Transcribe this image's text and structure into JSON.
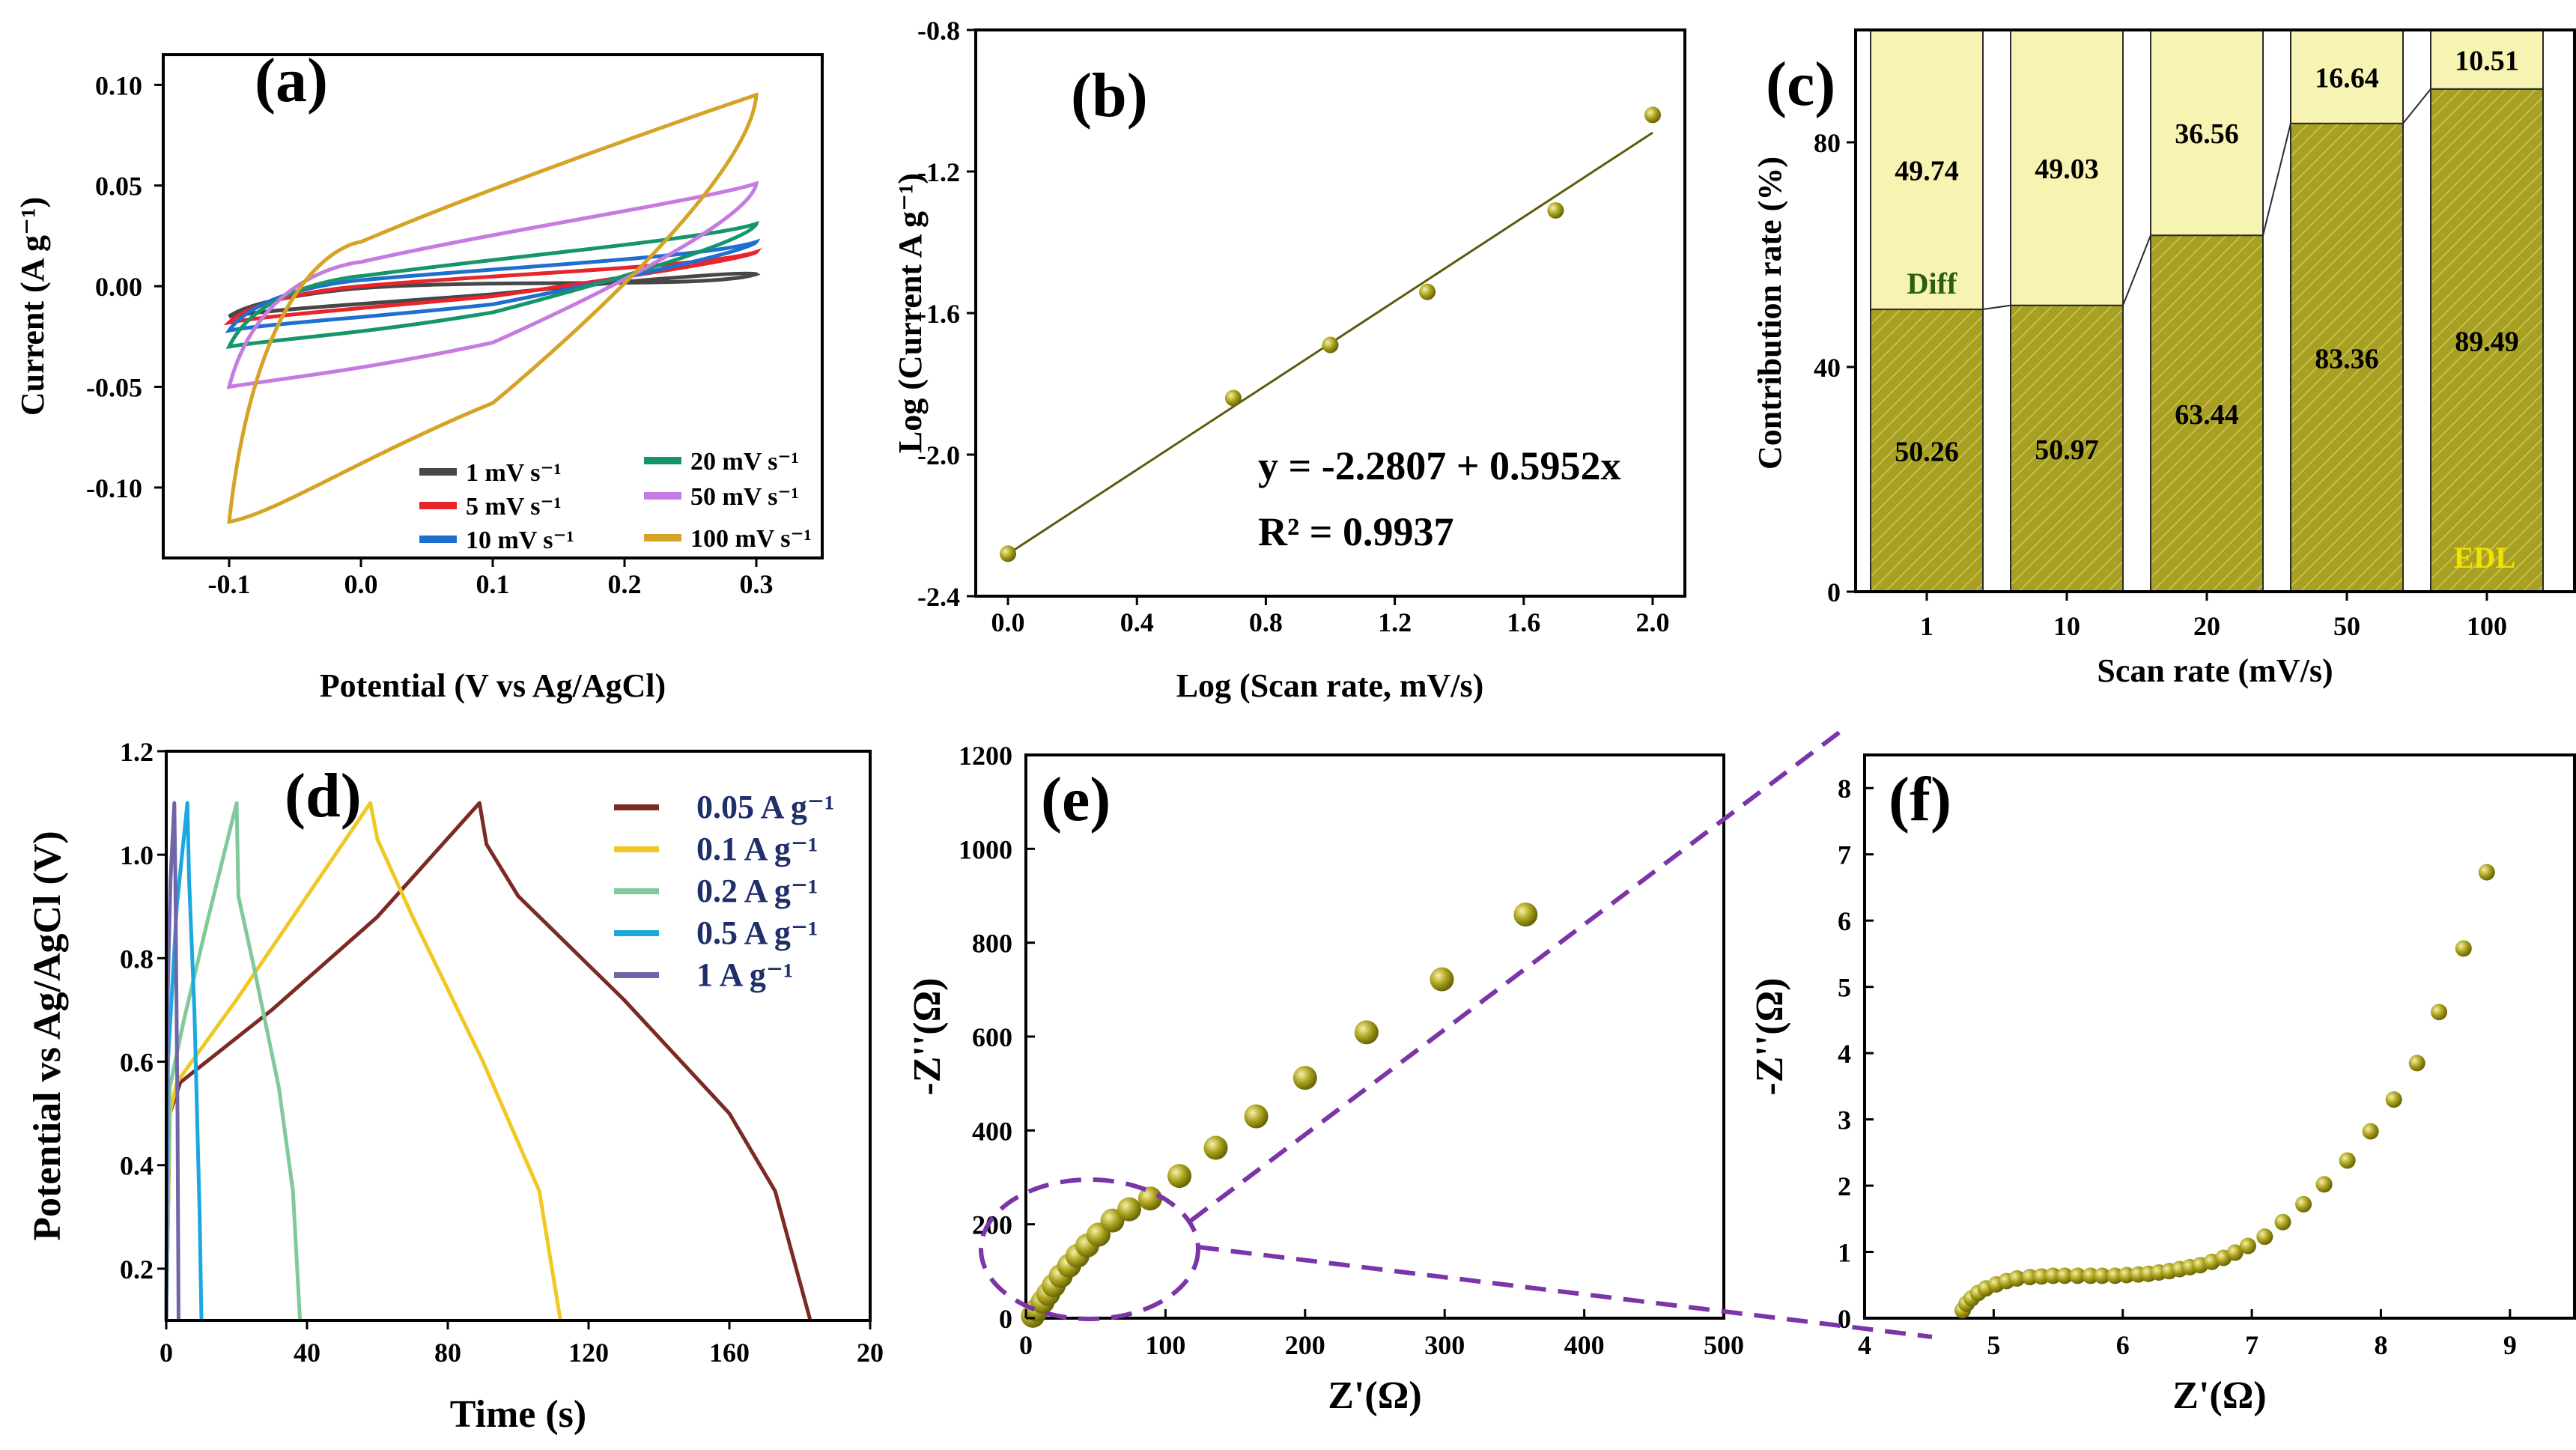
{
  "panels": {
    "a": {
      "label": "(a)"
    },
    "b": {
      "label": "(b)"
    },
    "c": {
      "label": "(c)"
    },
    "d": {
      "label": "(d)"
    },
    "e": {
      "label": "(e)"
    },
    "f": {
      "label": "(f)"
    }
  },
  "colors": {
    "olive": "#a8a022",
    "olive_dark": "#5a5410",
    "cream": "#f7f3b2",
    "purple": "#7b35a8",
    "dataset_point": "#a7a11c",
    "edl_label": "#f2e300",
    "diff_label": "#2a5e10"
  },
  "chart_data": [
    {
      "id": "a",
      "type": "line",
      "title": "",
      "xlabel": "Potential (V vs Ag/AgCl)",
      "ylabel": "Current (A g⁻¹)",
      "xlim": [
        -0.15,
        0.35
      ],
      "ylim": [
        -0.135,
        0.115
      ],
      "xticks": [
        "-0.1",
        "0.0",
        "0.1",
        "0.2",
        "0.3"
      ],
      "yticks": [
        "-0.10",
        "-0.05",
        "0.00",
        "0.05",
        "0.10"
      ],
      "legend_position": "bottom-right",
      "series": [
        {
          "name": "1 mV s⁻¹",
          "color": "#474747",
          "top": [
            -0.015,
            -0.001,
            0.004,
            0.006
          ],
          "bottom": [
            -0.015,
            -0.009,
            -0.004,
            0.005
          ]
        },
        {
          "name": "5 mV s⁻¹",
          "color": "#e8252b",
          "top": [
            -0.018,
            0.0,
            0.006,
            0.017
          ],
          "bottom": [
            -0.018,
            -0.011,
            -0.005,
            0.009
          ]
        },
        {
          "name": "10 mV s⁻¹",
          "color": "#1f6fd0",
          "top": [
            -0.022,
            0.003,
            0.009,
            0.022
          ],
          "bottom": [
            -0.022,
            -0.016,
            -0.009,
            0.012
          ]
        },
        {
          "name": "20 mV s⁻¹",
          "color": "#16956a",
          "top": [
            -0.03,
            0.005,
            0.014,
            0.031
          ],
          "bottom": [
            -0.03,
            -0.024,
            -0.013,
            0.016
          ]
        },
        {
          "name": "50 mV s⁻¹",
          "color": "#c57be0",
          "top": [
            -0.05,
            0.012,
            0.027,
            0.051
          ],
          "bottom": [
            -0.05,
            -0.042,
            -0.028,
            0.024
          ]
        },
        {
          "name": "100 mV s⁻¹",
          "color": "#d5a325",
          "top": [
            -0.117,
            0.022,
            0.05,
            0.095
          ],
          "bottom": [
            -0.117,
            -0.085,
            -0.058,
            0.042
          ]
        }
      ]
    },
    {
      "id": "b",
      "type": "scatter",
      "title": "",
      "xlabel": "Log (Scan rate, mV/s)",
      "ylabel": "Log (Current A g⁻¹)",
      "xlim": [
        -0.1,
        2.1
      ],
      "ylim": [
        -2.4,
        -0.8
      ],
      "xticks": [
        "0.0",
        "0.4",
        "0.8",
        "1.2",
        "1.6",
        "2.0"
      ],
      "yticks": [
        "-2.4",
        "-2.0",
        "-1.6",
        "-1.2",
        "-0.8"
      ],
      "x": [
        0.0,
        0.699,
        1.0,
        1.301,
        1.699,
        2.0
      ],
      "y": [
        -2.28,
        -1.84,
        -1.69,
        -1.54,
        -1.31,
        -1.04
      ],
      "fit": {
        "intercept": -2.2807,
        "slope": 0.5952
      },
      "equation": "y = -2.2807 + 0.5952x",
      "r2": "R² = 0.9937"
    },
    {
      "id": "c",
      "type": "bar",
      "stacked": true,
      "title": "",
      "xlabel": "Scan rate (mV/s)",
      "ylabel": "Contribution rate (%)",
      "ylim": [
        0,
        100
      ],
      "yticks": [
        "0",
        "40",
        "80"
      ],
      "categories": [
        "1",
        "10",
        "20",
        "50",
        "100"
      ],
      "series": [
        {
          "name": "EDL",
          "values": [
            50.26,
            50.97,
            63.44,
            83.36,
            89.49
          ],
          "labels": [
            "50.26",
            "50.97",
            "63.44",
            "83.36",
            "89.49"
          ]
        },
        {
          "name": "Diff",
          "values": [
            49.74,
            49.03,
            36.56,
            16.64,
            10.51
          ],
          "labels": [
            "49.74",
            "49.03",
            "36.56",
            "16.64",
            "10.51"
          ]
        }
      ],
      "annotations": {
        "diff": "Diff",
        "edl": "EDL"
      }
    },
    {
      "id": "d",
      "type": "line",
      "title": "",
      "xlabel": "Time (s)",
      "ylabel": "Potential  vs Ag/AgCl (V)",
      "xlim": [
        0,
        200
      ],
      "ylim": [
        0.1,
        1.2
      ],
      "xticks": [
        "0",
        "40",
        "80",
        "120",
        "160",
        "20"
      ],
      "yticks": [
        "0.2",
        "0.4",
        "0.6",
        "0.8",
        "1.0",
        "1.2"
      ],
      "legend_position": "top-right",
      "series": [
        {
          "name": "0.05 A g⁻¹",
          "color": "#7b2a24",
          "x": [
            0,
            1,
            4,
            30,
            60,
            89,
            91,
            100,
            130,
            160,
            173,
            183
          ],
          "y": [
            0.1,
            0.5,
            0.56,
            0.7,
            0.88,
            1.1,
            1.02,
            0.92,
            0.72,
            0.5,
            0.35,
            0.1
          ]
        },
        {
          "name": "0.1 A g⁻¹",
          "color": "#f0c825",
          "x": [
            0,
            1,
            3,
            20,
            40,
            58,
            60,
            70,
            90,
            106,
            112
          ],
          "y": [
            0.1,
            0.5,
            0.56,
            0.72,
            0.92,
            1.1,
            1.03,
            0.88,
            0.6,
            0.35,
            0.1
          ]
        },
        {
          "name": "0.2 A g⁻¹",
          "color": "#7fc99a",
          "x": [
            0,
            1,
            5,
            12,
            20,
            20.5,
            25,
            32,
            36,
            38
          ],
          "y": [
            0.1,
            0.55,
            0.68,
            0.88,
            1.1,
            0.92,
            0.78,
            0.55,
            0.35,
            0.1
          ]
        },
        {
          "name": "0.5 A g⁻¹",
          "color": "#1ba7df",
          "x": [
            0,
            0.5,
            3,
            6,
            6.5,
            8,
            9.5,
            10
          ],
          "y": [
            0.1,
            0.6,
            0.9,
            1.1,
            0.95,
            0.7,
            0.3,
            0.1
          ]
        },
        {
          "name": "1 A g⁻¹",
          "color": "#6f66a8",
          "x": [
            0,
            0.3,
            1.2,
            2.3,
            2.6,
            3.2,
            3.5
          ],
          "y": [
            0.1,
            0.7,
            0.95,
            1.1,
            0.95,
            0.5,
            0.1
          ]
        }
      ]
    },
    {
      "id": "e",
      "type": "scatter",
      "title": "",
      "xlabel": "Z'(Ω)",
      "ylabel": "-Z''(Ω)",
      "xlim": [
        0,
        500
      ],
      "ylim": [
        0,
        1200
      ],
      "xticks": [
        "0",
        "100",
        "200",
        "300",
        "400",
        "500"
      ],
      "yticks": [
        "0",
        "200",
        "400",
        "600",
        "800",
        "1000",
        "1200"
      ],
      "x": [
        5,
        8,
        12,
        16,
        20,
        25,
        31,
        37,
        44,
        52,
        62,
        74,
        89,
        110,
        136,
        165,
        200,
        244,
        298,
        358
      ],
      "y": [
        5,
        18,
        35,
        52,
        70,
        90,
        112,
        133,
        155,
        178,
        208,
        232,
        255,
        303,
        363,
        430,
        512,
        609,
        722,
        860
      ]
    },
    {
      "id": "f",
      "type": "scatter",
      "title": "",
      "xlabel": "Z'(Ω)",
      "ylabel": "-Z''(Ω)",
      "xlim": [
        4,
        9.5
      ],
      "ylim": [
        0,
        8.5
      ],
      "xticks": [
        "4",
        "5",
        "6",
        "7",
        "8",
        "9"
      ],
      "yticks": [
        "0",
        "1",
        "2",
        "3",
        "4",
        "5",
        "6",
        "7",
        "8"
      ],
      "x": [
        4.76,
        4.79,
        4.83,
        4.88,
        4.94,
        5.02,
        5.1,
        5.18,
        5.28,
        5.37,
        5.46,
        5.55,
        5.65,
        5.75,
        5.84,
        5.94,
        6.03,
        6.12,
        6.2,
        6.28,
        6.36,
        6.44,
        6.52,
        6.6,
        6.69,
        6.78,
        6.87,
        6.97,
        7.1,
        7.24,
        7.4,
        7.56,
        7.74,
        7.92,
        8.1,
        8.28,
        8.45,
        8.64,
        8.82
      ],
      "y": [
        0.12,
        0.22,
        0.3,
        0.38,
        0.45,
        0.51,
        0.56,
        0.6,
        0.62,
        0.63,
        0.64,
        0.64,
        0.64,
        0.64,
        0.64,
        0.64,
        0.65,
        0.66,
        0.67,
        0.69,
        0.71,
        0.74,
        0.77,
        0.8,
        0.85,
        0.91,
        0.99,
        1.09,
        1.23,
        1.45,
        1.72,
        2.02,
        2.38,
        2.82,
        3.3,
        3.85,
        4.62,
        5.58,
        6.73
      ]
    }
  ]
}
